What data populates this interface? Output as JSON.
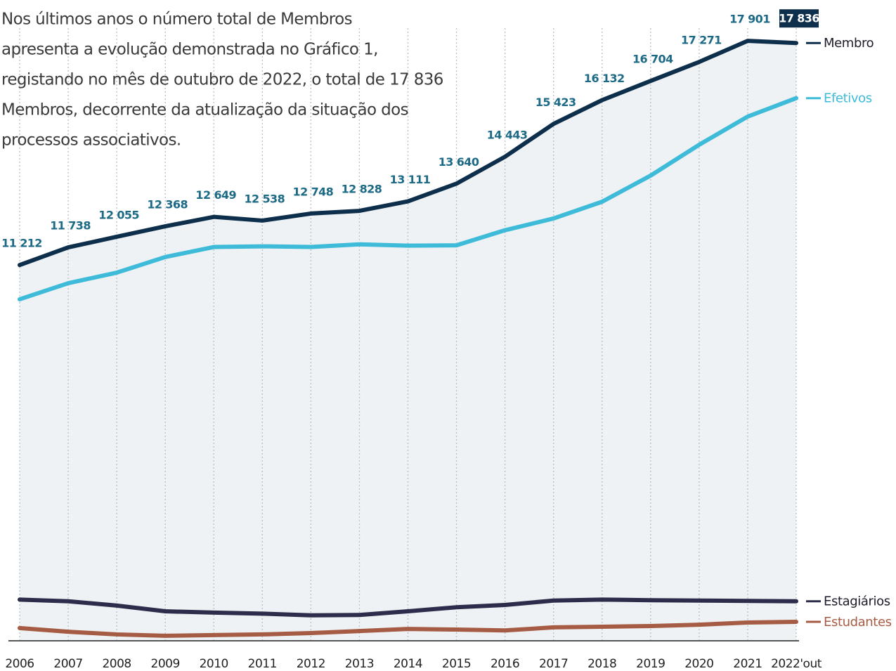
{
  "chart_data": {
    "type": "line",
    "text_lines": [
      "Nos últimos anos o número total de Membros",
      "apresenta a evolução demonstrada no Gráfico 1,",
      "registando no mês de outubro de 2022, o total de 17 836",
      "Membros, decorrente da atualização da situação dos",
      "processos associativos."
    ],
    "categories": [
      "2006",
      "2007",
      "2008",
      "2009",
      "2010",
      "2011",
      "2012",
      "2013",
      "2014",
      "2015",
      "2016",
      "2017",
      "2018",
      "2019",
      "2020",
      "2021",
      "2022'out"
    ],
    "ylim": [
      0,
      18700
    ],
    "grid": true,
    "series": [
      {
        "name": "Membro",
        "color": "#0e2f4b",
        "values": [
          11212,
          11738,
          12055,
          12368,
          12649,
          12538,
          12748,
          12828,
          13111,
          13640,
          14443,
          15423,
          16132,
          16704,
          17271,
          17901,
          17836
        ],
        "value_labels": [
          "11 212",
          "11 738",
          "12 055",
          "12 368",
          "12 649",
          "12 538",
          "12 748",
          "12 828",
          "13 111",
          "13 640",
          "14 443",
          "15 423",
          "16 132",
          "16 704",
          "17 271",
          "17 901",
          "17 836"
        ]
      },
      {
        "name": "Efetivos",
        "color": "#3dbbd8",
        "values": [
          10190,
          10670,
          10985,
          11450,
          11750,
          11770,
          11750,
          11830,
          11790,
          11800,
          12250,
          12600,
          13100,
          13880,
          14800,
          15640,
          16190
        ]
      },
      {
        "name": "Estagiários",
        "color": "#2d2d4b",
        "values": [
          1230,
          1180,
          1050,
          880,
          840,
          810,
          760,
          770,
          880,
          1000,
          1070,
          1200,
          1230,
          1210,
          1200,
          1190,
          1180
        ]
      },
      {
        "name": "Estudantes",
        "color": "#a65c44",
        "values": [
          380,
          270,
          190,
          150,
          170,
          190,
          230,
          290,
          355,
          335,
          310,
          400,
          420,
          440,
          480,
          545,
          565
        ]
      }
    ]
  }
}
